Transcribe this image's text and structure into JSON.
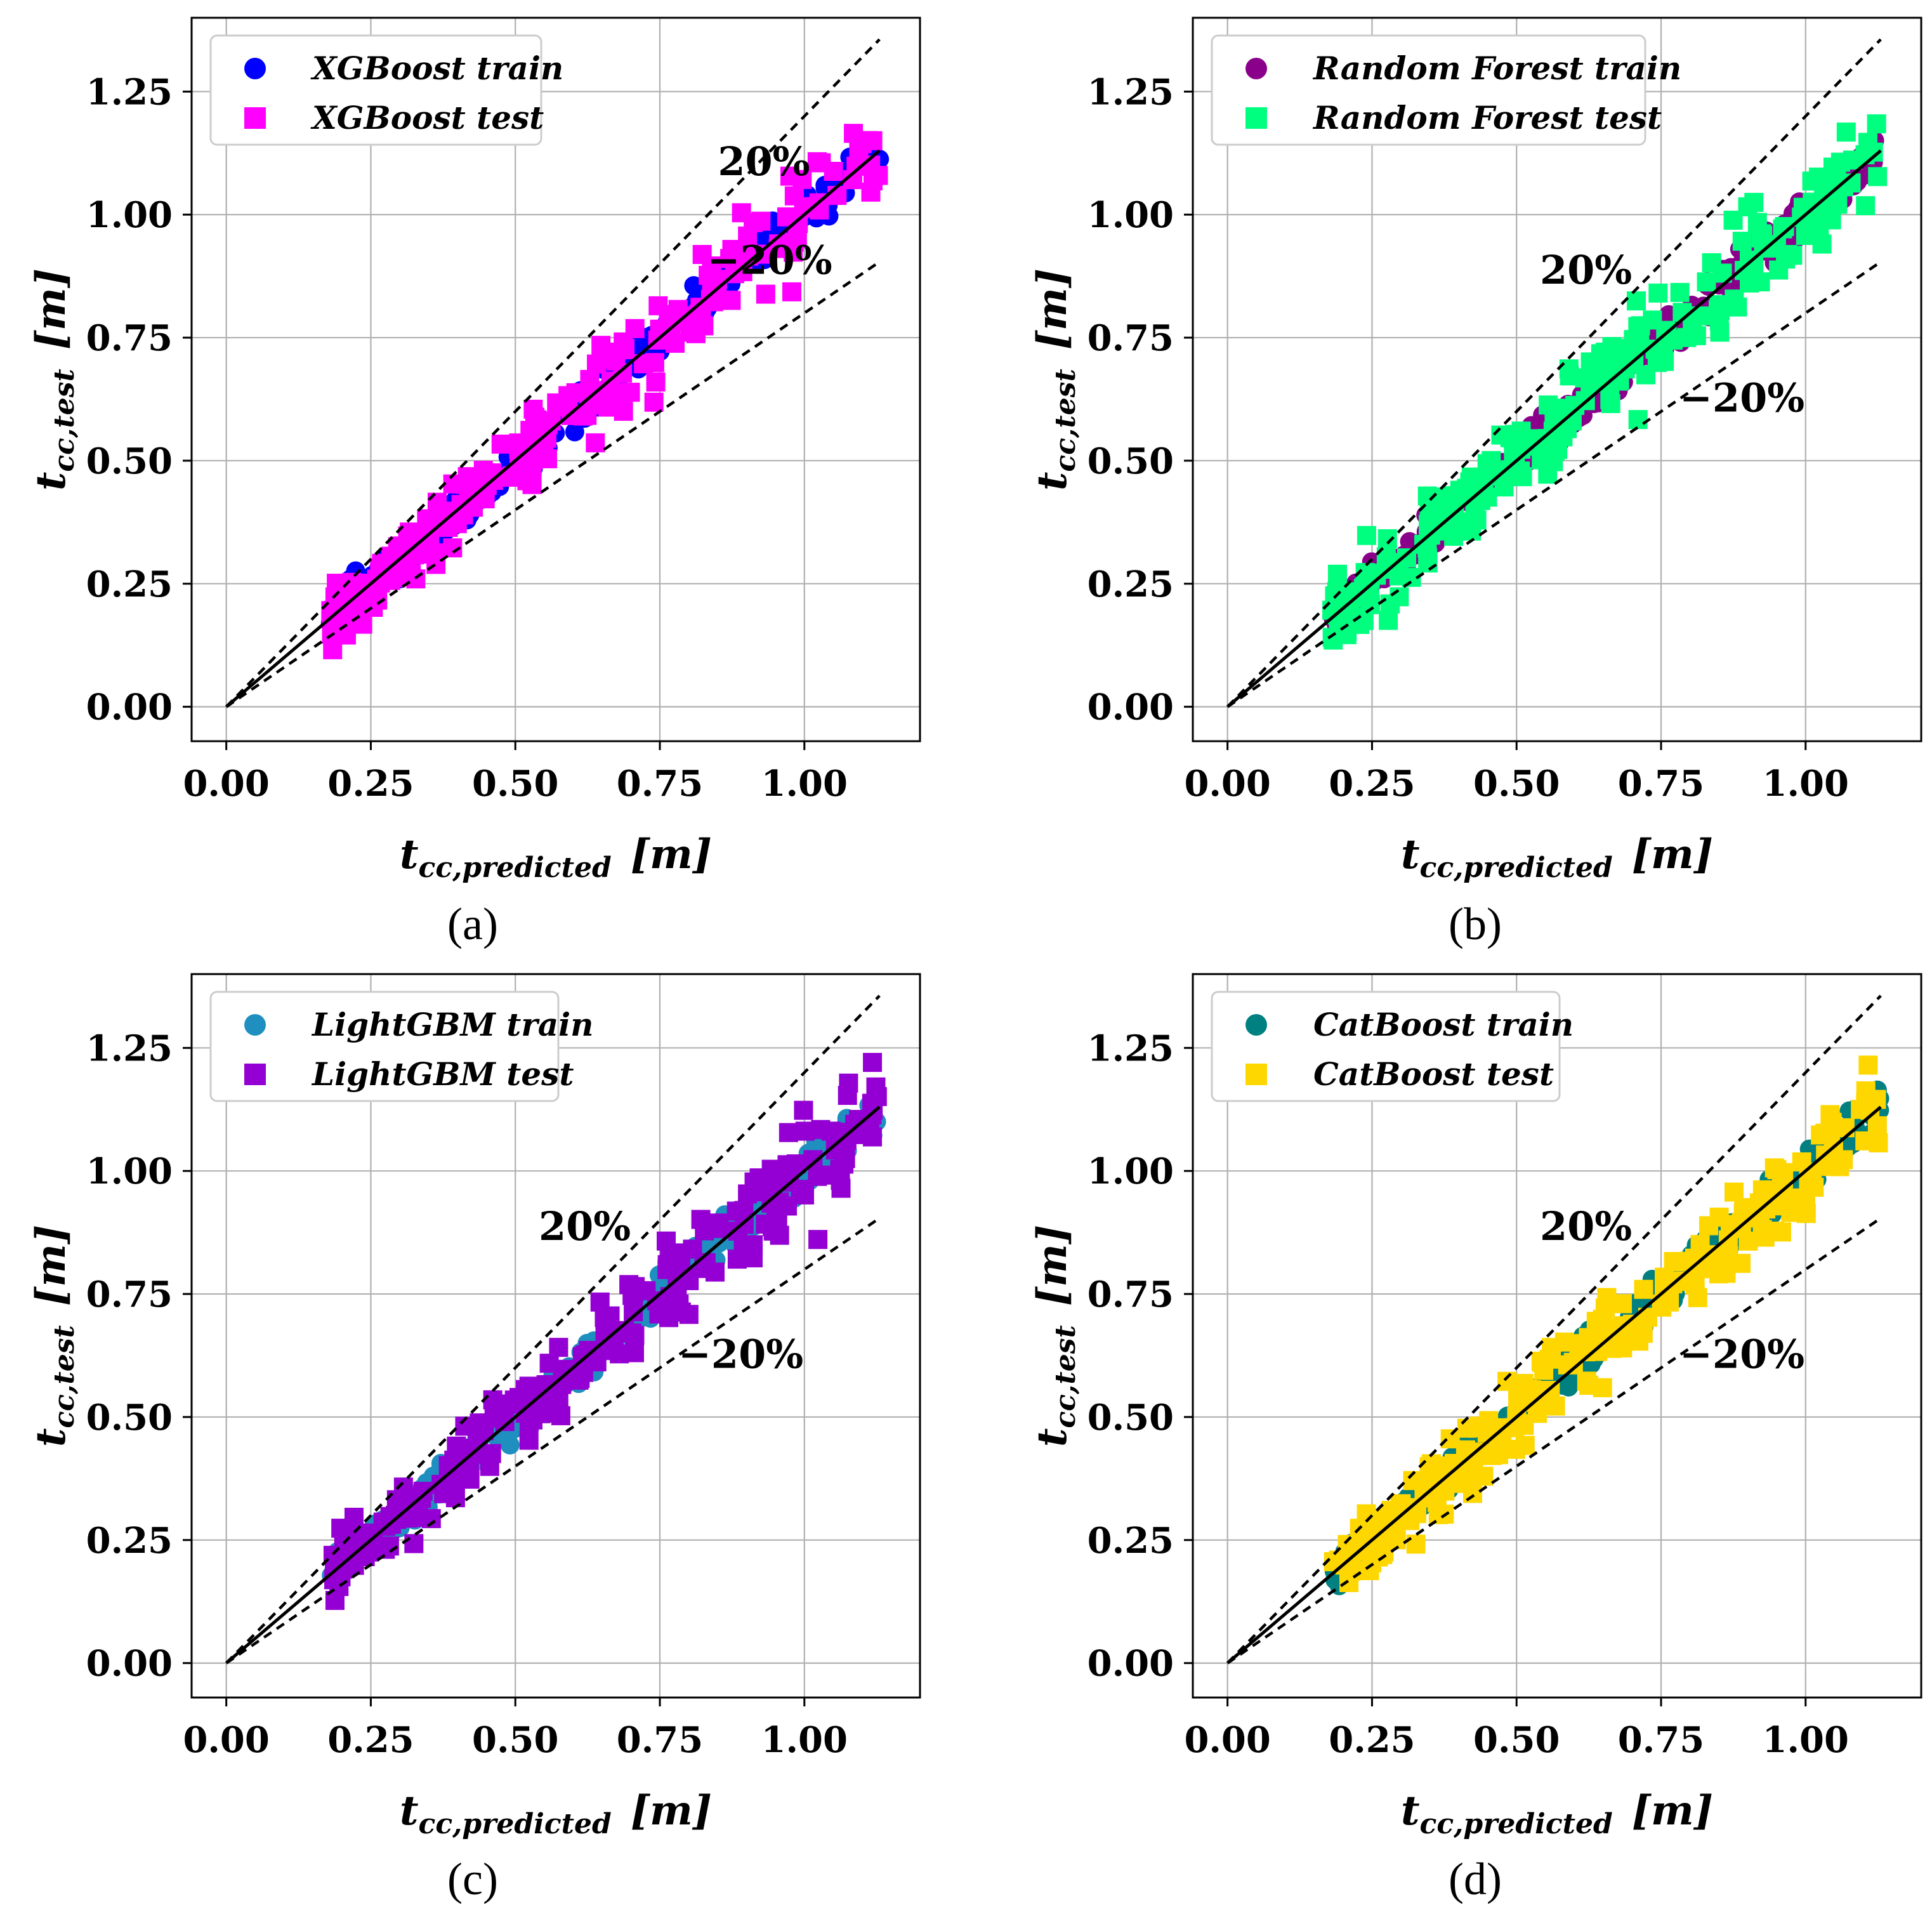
{
  "figure": {
    "panels": [
      "(a)",
      "(b)",
      "(c)",
      "(d)"
    ]
  },
  "chart_data": [
    {
      "id": "a",
      "panel_label": "(a)",
      "type": "scatter",
      "xlabel": "t",
      "xlabel_sub": "cc,predicted",
      "xlabel_unit": "[m]",
      "ylabel": "t",
      "ylabel_sub": "cc,test",
      "ylabel_unit": "[m]",
      "xlim": [
        -0.06,
        1.2
      ],
      "ylim": [
        -0.07,
        1.4
      ],
      "xticks": [
        "0.00",
        "0.25",
        "0.50",
        "0.75",
        "1.00"
      ],
      "yticks": [
        "0.00",
        "0.25",
        "0.50",
        "0.75",
        "1.00",
        "1.25"
      ],
      "grid": true,
      "legend_position": "top-left",
      "reference_lines": {
        "identity": "y = x",
        "upper": "y = 1.2x",
        "lower": "y = 0.8x",
        "x_end": 1.13
      },
      "band_labels": [
        {
          "text": "20%",
          "x": 0.93,
          "y": 1.08
        },
        {
          "text": "−20%",
          "x": 0.94,
          "y": 0.88
        }
      ],
      "series": [
        {
          "name": "XGBoost train",
          "marker": "circle",
          "color": "#0000ff",
          "n": 260,
          "x_range": [
            0.18,
            1.13
          ],
          "noise_sd": 0.02,
          "seed": 11
        },
        {
          "name": "XGBoost test",
          "marker": "square",
          "color": "#ff00ff",
          "n": 230,
          "x_range": [
            0.18,
            1.13
          ],
          "noise_sd": 0.045,
          "seed": 12
        }
      ]
    },
    {
      "id": "b",
      "panel_label": "(b)",
      "type": "scatter",
      "xlabel": "t",
      "xlabel_sub": "cc,predicted",
      "xlabel_unit": "[m]",
      "ylabel": "t",
      "ylabel_sub": "cc,test",
      "ylabel_unit": "[m]",
      "xlim": [
        -0.06,
        1.2
      ],
      "ylim": [
        -0.07,
        1.4
      ],
      "xticks": [
        "0.00",
        "0.25",
        "0.50",
        "0.75",
        "1.00"
      ],
      "yticks": [
        "0.00",
        "0.25",
        "0.50",
        "0.75",
        "1.00",
        "1.25"
      ],
      "grid": true,
      "legend_position": "top-left",
      "reference_lines": {
        "identity": "y = x",
        "upper": "y = 1.2x",
        "lower": "y = 0.8x",
        "x_end": 1.13
      },
      "band_labels": [
        {
          "text": "20%",
          "x": 0.62,
          "y": 0.86
        },
        {
          "text": "−20%",
          "x": 0.89,
          "y": 0.6
        }
      ],
      "series": [
        {
          "name": "Random Forest train",
          "marker": "circle",
          "color": "#8b008b",
          "n": 260,
          "x_range": [
            0.18,
            1.13
          ],
          "noise_sd": 0.02,
          "seed": 21
        },
        {
          "name": "Random Forest test",
          "marker": "square",
          "color": "#00ff7f",
          "n": 230,
          "x_range": [
            0.18,
            1.13
          ],
          "noise_sd": 0.045,
          "seed": 22
        }
      ]
    },
    {
      "id": "c",
      "panel_label": "(c)",
      "type": "scatter",
      "xlabel": "t",
      "xlabel_sub": "cc,predicted",
      "xlabel_unit": "[m]",
      "ylabel": "t",
      "ylabel_sub": "cc,test",
      "ylabel_unit": "[m]",
      "xlim": [
        -0.06,
        1.2
      ],
      "ylim": [
        -0.07,
        1.4
      ],
      "xticks": [
        "0.00",
        "0.25",
        "0.50",
        "0.75",
        "1.00"
      ],
      "yticks": [
        "0.00",
        "0.25",
        "0.50",
        "0.75",
        "1.00",
        "1.25"
      ],
      "grid": true,
      "legend_position": "top-left",
      "reference_lines": {
        "identity": "y = x",
        "upper": "y = 1.2x",
        "lower": "y = 0.8x",
        "x_end": 1.13
      },
      "band_labels": [
        {
          "text": "20%",
          "x": 0.62,
          "y": 0.86
        },
        {
          "text": "−20%",
          "x": 0.89,
          "y": 0.6
        }
      ],
      "series": [
        {
          "name": "LightGBM train",
          "marker": "circle",
          "color": "#1f8fbf",
          "n": 260,
          "x_range": [
            0.18,
            1.13
          ],
          "noise_sd": 0.02,
          "seed": 31
        },
        {
          "name": "LightGBM test",
          "marker": "square",
          "color": "#9400d3",
          "n": 230,
          "x_range": [
            0.18,
            1.13
          ],
          "noise_sd": 0.045,
          "seed": 32
        }
      ]
    },
    {
      "id": "d",
      "panel_label": "(d)",
      "type": "scatter",
      "xlabel": "t",
      "xlabel_sub": "cc,predicted",
      "xlabel_unit": "[m]",
      "ylabel": "t",
      "ylabel_sub": "cc,test",
      "ylabel_unit": "[m]",
      "xlim": [
        -0.06,
        1.2
      ],
      "ylim": [
        -0.07,
        1.4
      ],
      "xticks": [
        "0.00",
        "0.25",
        "0.50",
        "0.75",
        "1.00"
      ],
      "yticks": [
        "0.00",
        "0.25",
        "0.50",
        "0.75",
        "1.00",
        "1.25"
      ],
      "grid": true,
      "legend_position": "top-left",
      "reference_lines": {
        "identity": "y = x",
        "upper": "y = 1.2x",
        "lower": "y = 0.8x",
        "x_end": 1.13
      },
      "band_labels": [
        {
          "text": "20%",
          "x": 0.62,
          "y": 0.86
        },
        {
          "text": "−20%",
          "x": 0.89,
          "y": 0.6
        }
      ],
      "series": [
        {
          "name": "CatBoost train",
          "marker": "circle",
          "color": "#008080",
          "n": 260,
          "x_range": [
            0.18,
            1.13
          ],
          "noise_sd": 0.02,
          "seed": 41
        },
        {
          "name": "CatBoost test",
          "marker": "square",
          "color": "#ffd700",
          "n": 230,
          "x_range": [
            0.18,
            1.13
          ],
          "noise_sd": 0.045,
          "seed": 42
        }
      ]
    }
  ]
}
